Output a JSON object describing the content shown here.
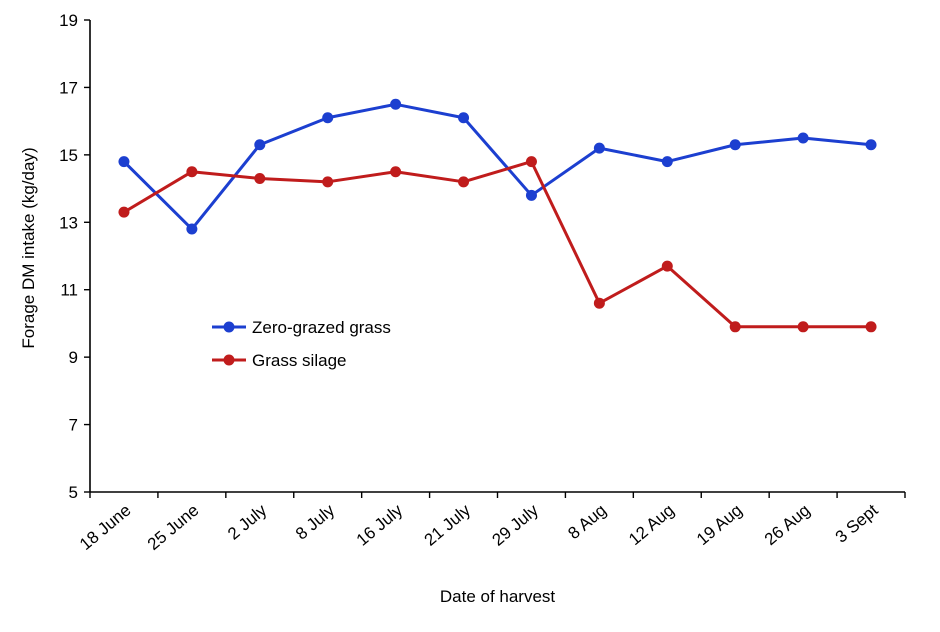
{
  "chart_data": {
    "type": "line",
    "title": "",
    "xlabel": "Date of harvest",
    "ylabel": "Forage DM intake (kg/day)",
    "categories": [
      "18 June",
      "25 June",
      "2 July",
      "8 July",
      "16 July",
      "21 July",
      "29 July",
      "8 Aug",
      "12 Aug",
      "19 Aug",
      "26 Aug",
      "3 Sept"
    ],
    "ylim": [
      5,
      19
    ],
    "yticks": [
      5,
      7,
      9,
      11,
      13,
      15,
      17,
      19
    ],
    "grid": false,
    "legend_position": "center-left",
    "series": [
      {
        "name": "Zero-grazed grass",
        "color": "#1c3fd0",
        "values": [
          14.8,
          12.8,
          15.3,
          16.1,
          16.5,
          16.1,
          13.8,
          15.2,
          14.8,
          15.3,
          15.5,
          15.3
        ]
      },
      {
        "name": "Grass silage",
        "color": "#c01c1c",
        "values": [
          13.3,
          14.5,
          14.3,
          14.2,
          14.5,
          14.2,
          14.8,
          10.6,
          11.7,
          9.9,
          9.9,
          9.9
        ]
      }
    ]
  }
}
